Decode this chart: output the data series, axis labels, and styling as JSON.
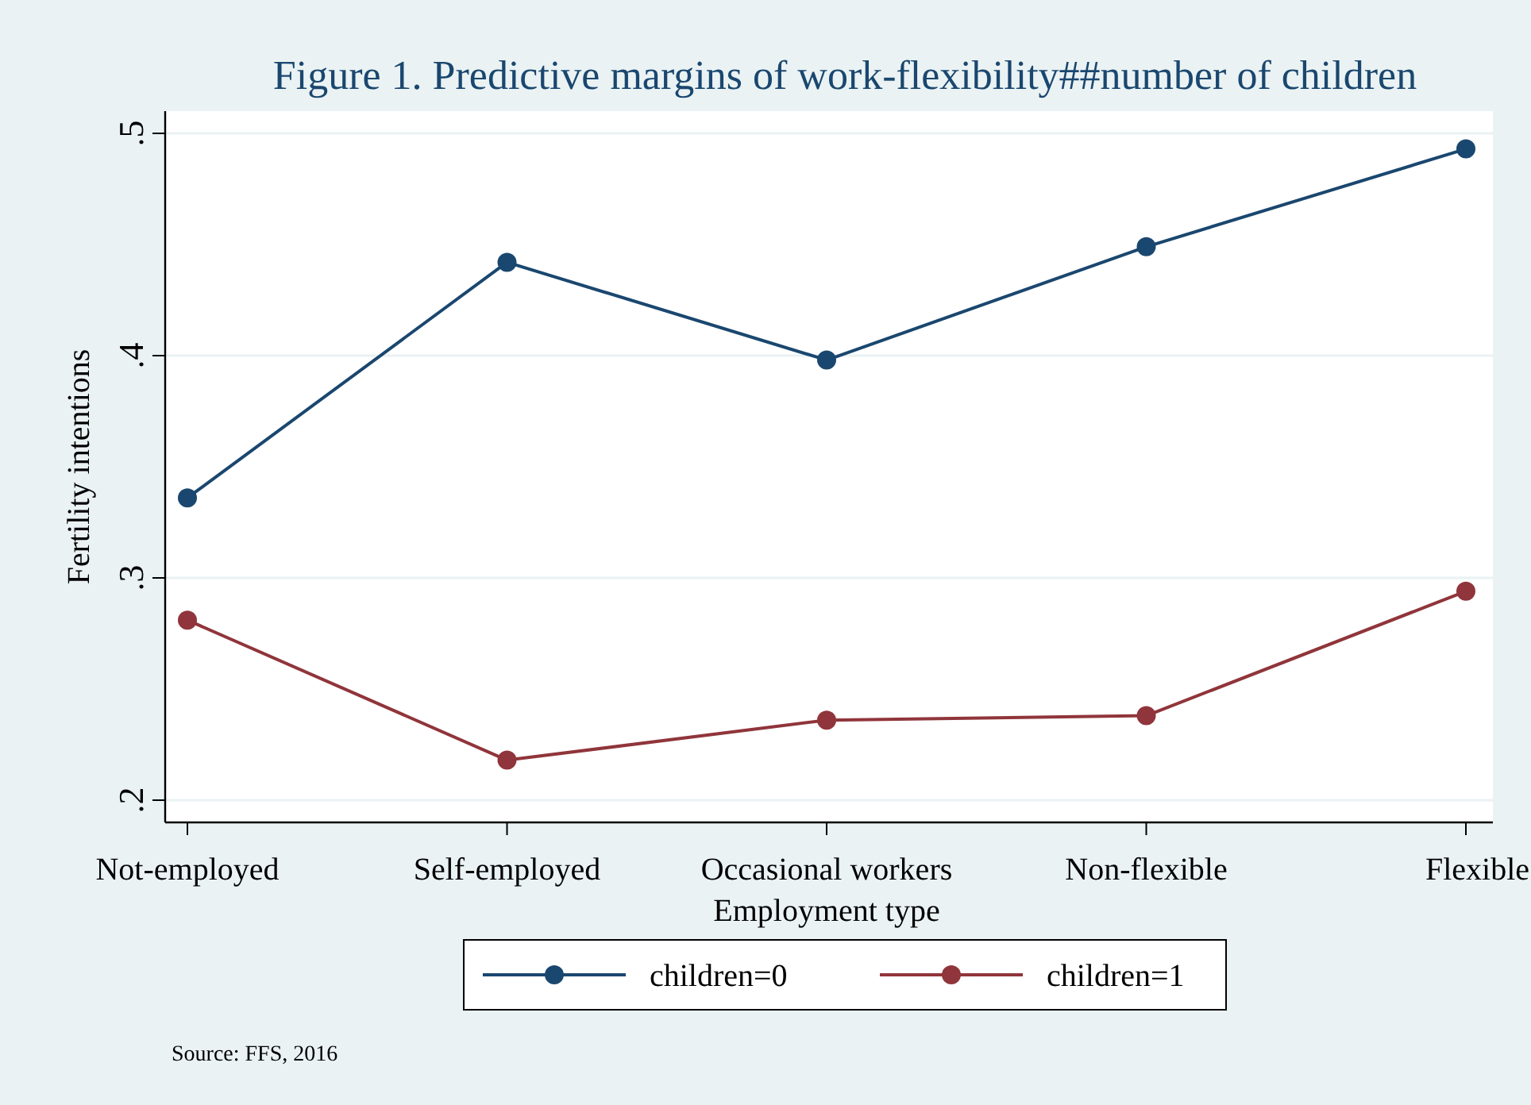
{
  "chart_data": {
    "type": "line",
    "title": "Figure 1. Predictive margins of work-flexibility##number of children",
    "xlabel": "Employment type",
    "ylabel": "Fertility intentions",
    "categories": [
      "Not-employed",
      "Self-employed",
      "Occasional workers",
      "Non-flexible",
      "Flexible"
    ],
    "series": [
      {
        "name": "children=0",
        "color": "#1a476f",
        "values": [
          0.336,
          0.442,
          0.398,
          0.449,
          0.493
        ]
      },
      {
        "name": "children=1",
        "color": "#90353b",
        "values": [
          0.281,
          0.218,
          0.236,
          0.238,
          0.294
        ]
      }
    ],
    "ylim": [
      0.19,
      0.51
    ],
    "yticks": [
      {
        "value": 0.2,
        "label": ".2"
      },
      {
        "value": 0.3,
        "label": ".3"
      },
      {
        "value": 0.4,
        "label": ".4"
      },
      {
        "value": 0.5,
        "label": ".5"
      }
    ],
    "grid": "y",
    "legend": "bottom",
    "marker": "circle",
    "line_style": "solid",
    "annotations": [
      "Source: FFS, 2016"
    ]
  }
}
